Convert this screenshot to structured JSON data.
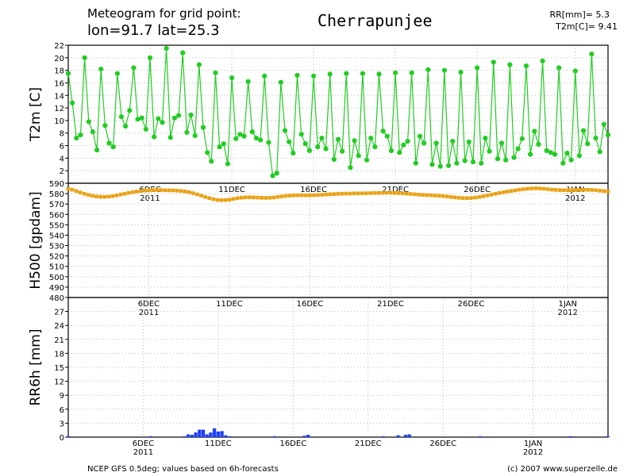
{
  "header": {
    "line1": "Meteogram for grid point:",
    "line2": "lon=91.7 lat=25.3",
    "station": "Cherrapunjee",
    "rr_label": "RR[mm]= 5.3",
    "t2m_label": "T2m[C]= 9.41"
  },
  "footer": {
    "source": "NCEP GFS 0.5deg; values based on 6h-forecasts",
    "copyright": "(c) 2007 www.superzelle.de"
  },
  "colors": {
    "t2m": "#22cc22",
    "h500": "#e8a317",
    "rr": "#1f3fff"
  },
  "chart_data": [
    {
      "type": "line",
      "ylabel": "T2m [C]",
      "ylim": [
        0,
        22
      ],
      "yticks": [
        2,
        4,
        6,
        8,
        10,
        12,
        14,
        16,
        18,
        20,
        22
      ],
      "x_tick_labels": [
        "6DEC",
        "11DEC",
        "16DEC",
        "21DEC",
        "26DEC",
        "1JAN"
      ],
      "x_tick_sublabels": [
        "2011",
        "",
        "",
        "",
        "",
        "2012"
      ],
      "x_start": "2011-12-01 00:00",
      "x_step_hours": 6,
      "grid": true,
      "series": [
        {
          "values": [
            17.5,
            12.8,
            7.2,
            7.7,
            20.0,
            9.8,
            8.2,
            5.3,
            18.2,
            9.2,
            6.4,
            5.8,
            17.5,
            10.6,
            9.1,
            11.6,
            18.4,
            10.2,
            10.4,
            8.6,
            20.0,
            7.4,
            10.3,
            9.7,
            21.5,
            7.3,
            10.4,
            10.8,
            20.8,
            8.1,
            10.9,
            7.6,
            18.9,
            8.9,
            4.9,
            3.5,
            17.6,
            5.8,
            6.3,
            3.1,
            16.8,
            7.1,
            7.8,
            7.5,
            16.2,
            8.2,
            7.2,
            6.9,
            17.1,
            6.5,
            1.2,
            1.6,
            16.1,
            8.4,
            6.6,
            4.8,
            17.2,
            7.8,
            6.3,
            5.2,
            17.1,
            5.8,
            7.2,
            5.5,
            17.4,
            3.8,
            7.0,
            5.1,
            17.5,
            2.5,
            6.8,
            4.4,
            17.5,
            3.7,
            7.2,
            5.8,
            17.4,
            8.3,
            7.5,
            5.2,
            17.6,
            4.9,
            6.1,
            6.7,
            17.6,
            3.2,
            7.5,
            6.4,
            18.1,
            3.0,
            6.4,
            2.7,
            18.0,
            2.8,
            6.7,
            3.2,
            17.7,
            3.6,
            6.6,
            3.4,
            18.4,
            3.2,
            7.2,
            5.1,
            19.3,
            3.9,
            6.4,
            3.7,
            18.9,
            4.1,
            5.5,
            7.1,
            18.7,
            4.6,
            8.3,
            6.2,
            19.5,
            5.2,
            4.9,
            4.6,
            18.4,
            3.2,
            4.8,
            3.7,
            17.9,
            4.4,
            8.4,
            6.3,
            20.6,
            7.2,
            5.0,
            9.4,
            7.7
          ]
        }
      ]
    },
    {
      "type": "line",
      "ylabel": "H500 [gpdam]",
      "ylim": [
        480,
        590
      ],
      "yticks": [
        480,
        490,
        500,
        510,
        520,
        530,
        540,
        550,
        560,
        570,
        580,
        590
      ],
      "x_tick_labels": [
        "6DEC",
        "11DEC",
        "16DEC",
        "21DEC",
        "26DEC",
        "1JAN"
      ],
      "x_tick_sublabels": [
        "2011",
        "",
        "",
        "",
        "",
        "2012"
      ],
      "grid": true,
      "series": [
        {
          "values": [
            584.5,
            583.8,
            582.5,
            581.1,
            579.9,
            578.8,
            577.9,
            577.3,
            577.0,
            576.9,
            577.1,
            577.6,
            578.3,
            579.1,
            579.9,
            580.7,
            581.4,
            582.0,
            582.5,
            582.9,
            583.2,
            583.4,
            583.5,
            583.4,
            583.3,
            583.2,
            583.1,
            582.9,
            582.6,
            582.1,
            581.4,
            580.4,
            579.3,
            578.1,
            576.8,
            575.7,
            574.7,
            574.0,
            573.7,
            573.8,
            574.2,
            574.9,
            575.6,
            576.1,
            576.4,
            576.5,
            576.4,
            576.2,
            576.0,
            575.9,
            576.0,
            576.3,
            576.8,
            577.3,
            577.8,
            578.1,
            578.3,
            578.4,
            578.4,
            578.4,
            578.4,
            578.5,
            578.7,
            578.9,
            579.2,
            579.4,
            579.6,
            579.8,
            579.9,
            580.0,
            580.1,
            580.2,
            580.3,
            580.3,
            580.4,
            580.5,
            580.6,
            580.7,
            580.8,
            580.8,
            580.8,
            580.7,
            580.5,
            580.3,
            580.0,
            579.7,
            579.4,
            579.1,
            578.8,
            578.6,
            578.4,
            578.2,
            578.0,
            577.7,
            577.3,
            576.8,
            576.4,
            576.0,
            575.8,
            575.7,
            575.8,
            576.2,
            576.7,
            577.4,
            578.2,
            579.0,
            579.8,
            580.6,
            581.3,
            582.0,
            582.6,
            583.2,
            583.8,
            584.3,
            584.7,
            585.0,
            585.1,
            585.0,
            584.7,
            584.3,
            583.9,
            583.6,
            583.4,
            583.3,
            583.3,
            583.4,
            583.5,
            583.6,
            583.7,
            583.7,
            583.6,
            583.3,
            582.9,
            582.5,
            582.1
          ]
        }
      ]
    },
    {
      "type": "bar",
      "ylabel": "RR6h [mm]",
      "ylim": [
        0,
        30
      ],
      "yticks": [
        0,
        3,
        6,
        9,
        12,
        15,
        18,
        21,
        24,
        27
      ],
      "x_tick_labels": [
        "6DEC",
        "11DEC",
        "16DEC",
        "21DEC",
        "26DEC",
        "1JAN"
      ],
      "x_tick_sublabels": [
        "2011",
        "",
        "",
        "",
        "",
        "2012"
      ],
      "grid": true,
      "series": [
        {
          "values": [
            0.2,
            0,
            0,
            0,
            0,
            0,
            0,
            0,
            0,
            0,
            0,
            0,
            0,
            0,
            0,
            0,
            0,
            0,
            0,
            0,
            0,
            0,
            0.2,
            0,
            0,
            0,
            0,
            0,
            0,
            0,
            0,
            0.2,
            0.6,
            0.5,
            1.0,
            1.6,
            1.6,
            0.6,
            1.0,
            1.9,
            1.2,
            1.3,
            0.4,
            0.2,
            0,
            0,
            0,
            0,
            0,
            0,
            0,
            0,
            0,
            0,
            0,
            0.2,
            0,
            0,
            0,
            0,
            0,
            0,
            0,
            0.3,
            0.5,
            0,
            0,
            0,
            0,
            0,
            0,
            0,
            0,
            0,
            0,
            0,
            0,
            0,
            0,
            0,
            0,
            0,
            0,
            0,
            0.2,
            0,
            0,
            0,
            0.4,
            0,
            0.5,
            0.6,
            0,
            0,
            0,
            0,
            0,
            0,
            0,
            0,
            0,
            0,
            0,
            0,
            0,
            0,
            0,
            0,
            0,
            0,
            0.2,
            0,
            0,
            0,
            0,
            0,
            0,
            0,
            0,
            0,
            0,
            0,
            0,
            0,
            0,
            0,
            0,
            0,
            0,
            0,
            0,
            0,
            0,
            0,
            0.2,
            0,
            0,
            0,
            0,
            0,
            0,
            0,
            0,
            0,
            0.2
          ]
        }
      ]
    }
  ]
}
